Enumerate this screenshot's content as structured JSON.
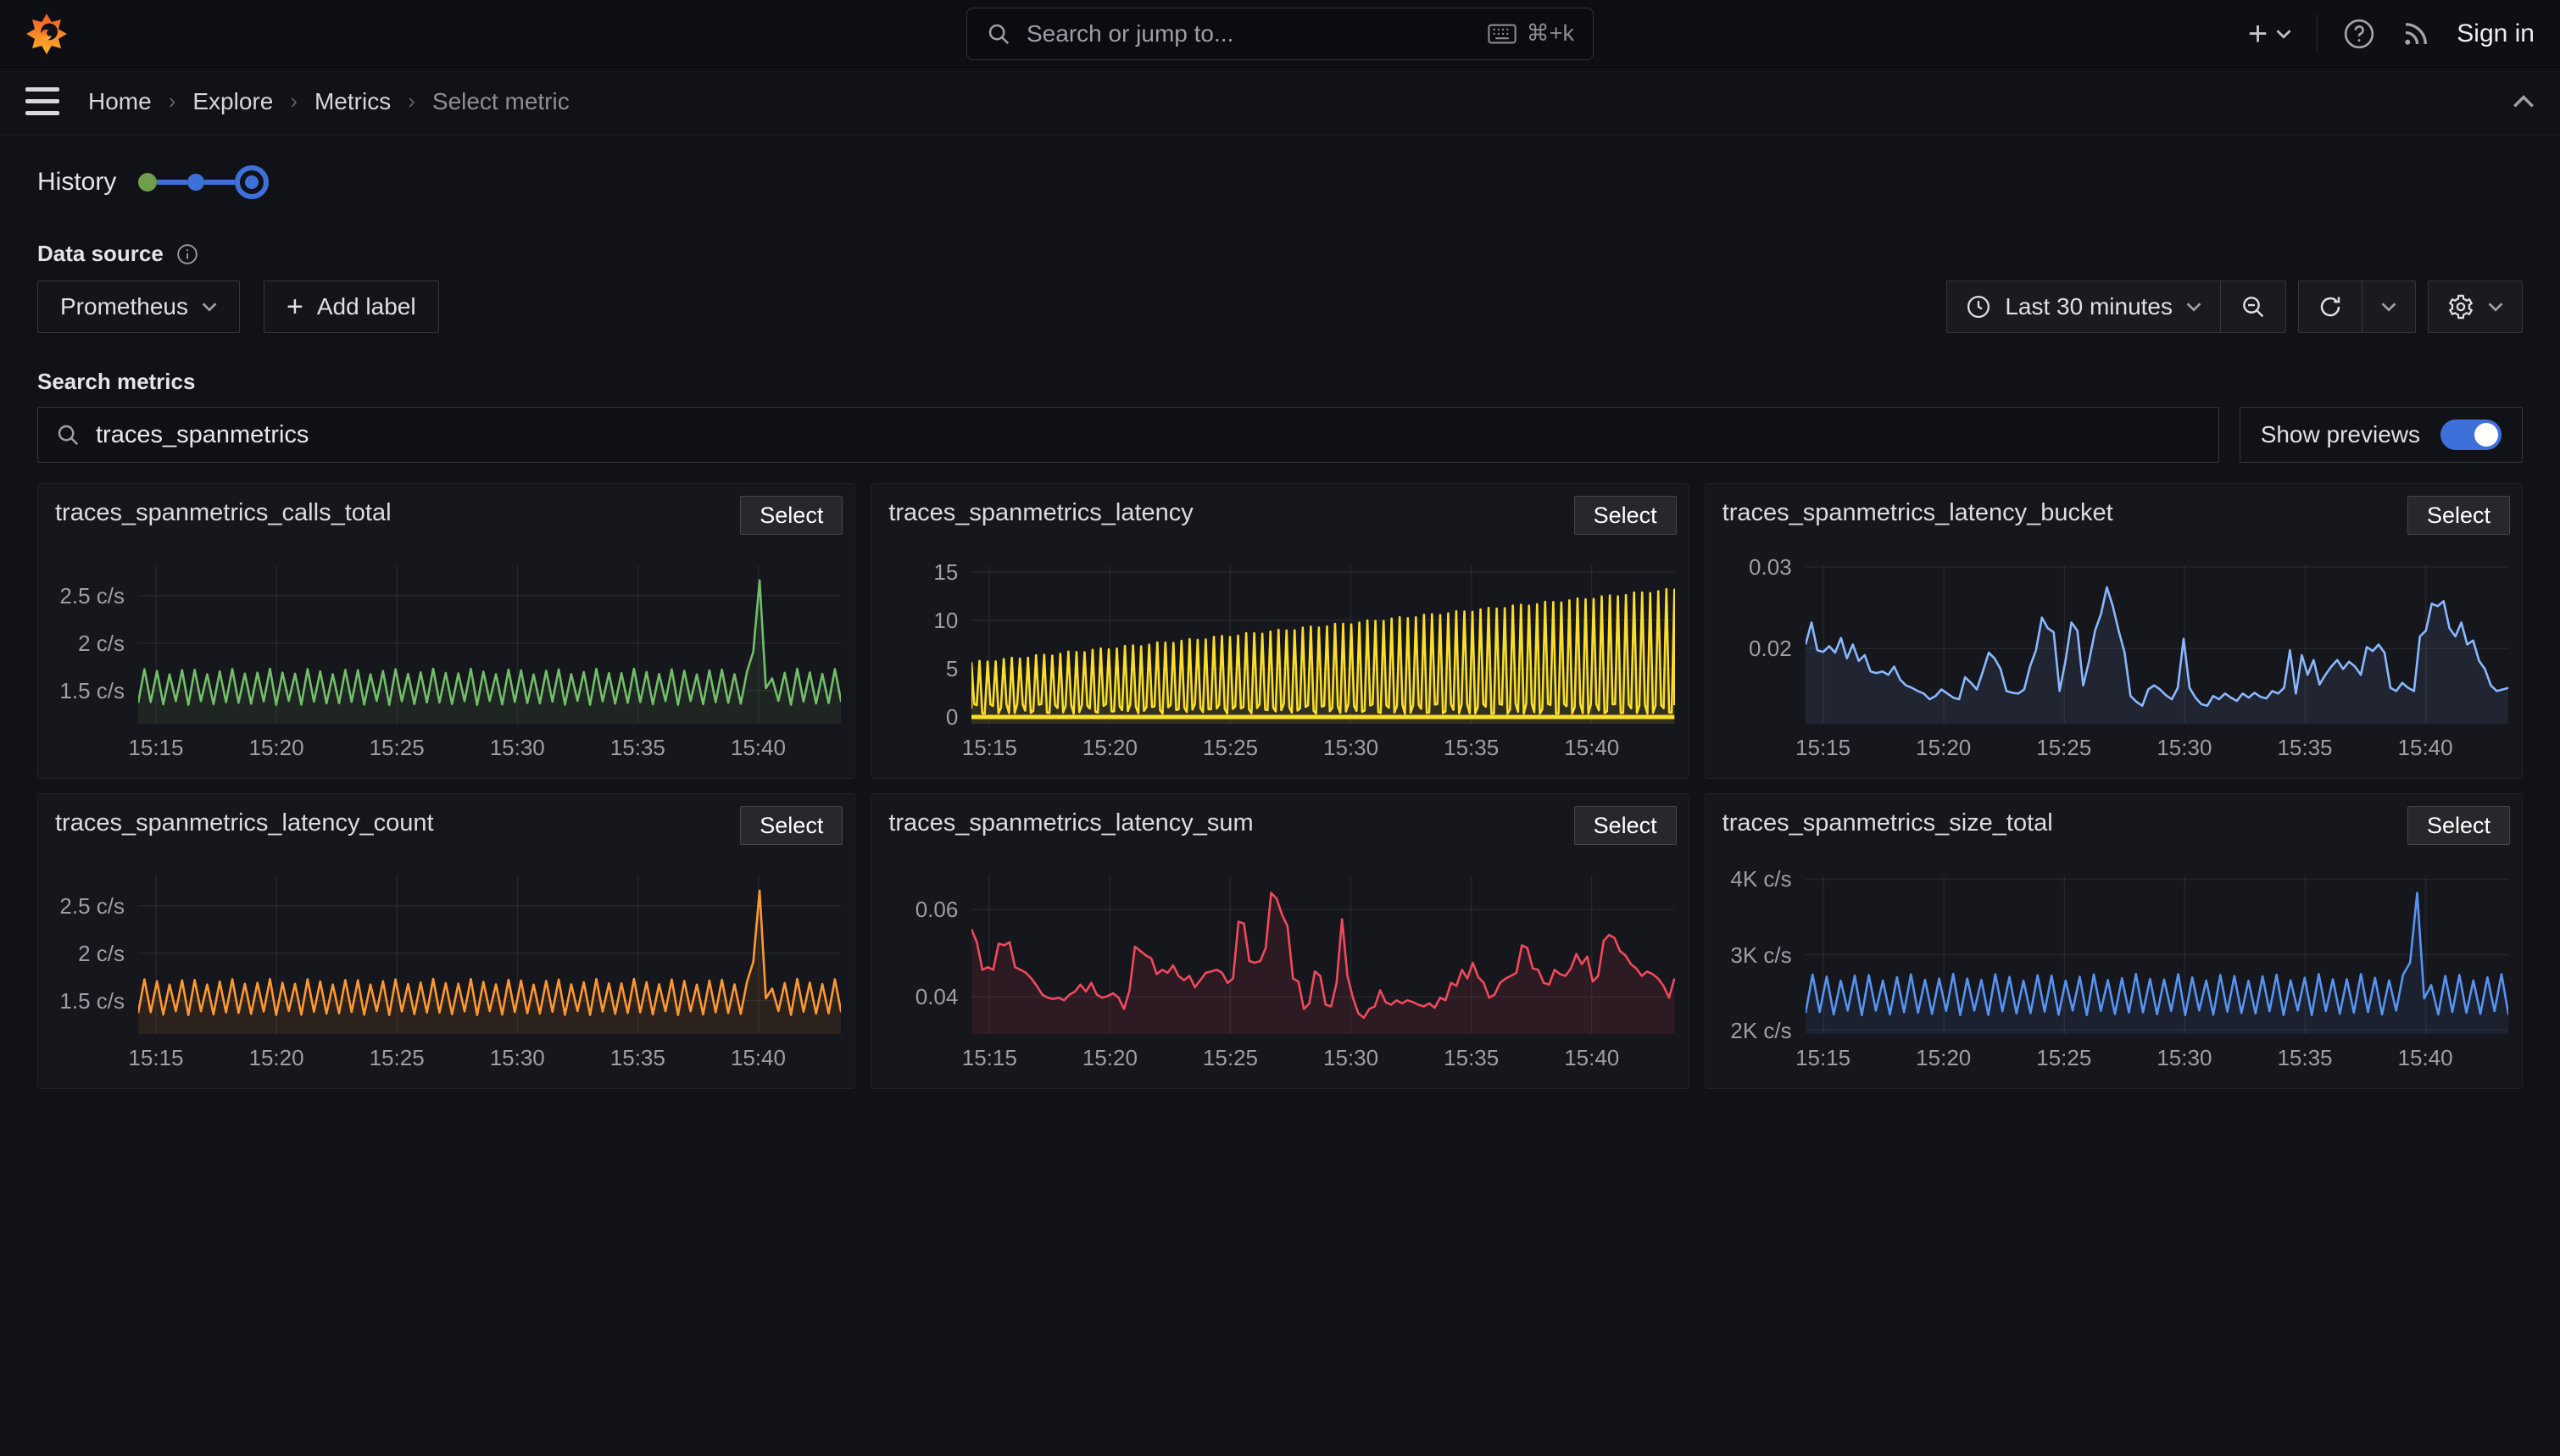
{
  "topbar": {
    "search_placeholder": "Search or jump to...",
    "shortcut": "⌘+k",
    "sign_in_label": "Sign in"
  },
  "breadcrumb": [
    "Home",
    "Explore",
    "Metrics",
    "Select metric"
  ],
  "history": {
    "label": "History"
  },
  "filters": {
    "datasource_label": "Data source",
    "datasource_value": "Prometheus",
    "add_label_button": "Add label",
    "time_range_label": "Last 30 minutes"
  },
  "search": {
    "label": "Search metrics",
    "value": "traces_spanmetrics",
    "show_previews_label": "Show previews"
  },
  "panel_button_label": "Select",
  "colors": {
    "accent_blue": "#3D71D9",
    "green": "#73BF69",
    "yellow": "#FADE2A",
    "light_blue": "#8AB8FF",
    "orange": "#FF9830",
    "red": "#F2495C",
    "blue": "#5794F2"
  },
  "chart_data": [
    {
      "type": "line",
      "title": "traces_spanmetrics_calls_total",
      "unit": "c/s",
      "color": "#73BF69",
      "fill_opacity": 0.09,
      "x_ticks": [
        "15:15",
        "15:20",
        "15:25",
        "15:30",
        "15:35",
        "15:40"
      ],
      "y_ticks": [
        {
          "v": 1.5,
          "label": "1.5 c/s"
        },
        {
          "v": 2,
          "label": "2 c/s"
        },
        {
          "v": 2.5,
          "label": "2.5 c/s"
        }
      ],
      "ylim": [
        1.15,
        2.82
      ],
      "series": {
        "kind": "zigzag",
        "cycles": 56,
        "low": 1.37,
        "high": 1.7,
        "jitter": 0.03,
        "spike_x": 0.873,
        "spike_value": 2.66
      }
    },
    {
      "type": "line",
      "title": "traces_spanmetrics_latency",
      "unit": "",
      "color": "#FADE2A",
      "fill_opacity": 0.12,
      "x_ticks": [
        "15:15",
        "15:20",
        "15:25",
        "15:30",
        "15:35",
        "15:40"
      ],
      "y_ticks": [
        {
          "v": 0,
          "label": "0"
        },
        {
          "v": 5,
          "label": "5"
        },
        {
          "v": 10,
          "label": "10"
        },
        {
          "v": 15,
          "label": "15"
        }
      ],
      "ylim": [
        -0.7,
        15.7
      ],
      "series": {
        "kind": "spikes",
        "count": 88,
        "top_start": 5.6,
        "top_end": 13.2,
        "low_min": 0.35,
        "low_max": 1.35,
        "baseline": 0
      }
    },
    {
      "type": "line",
      "title": "traces_spanmetrics_latency_bucket",
      "unit": "",
      "color": "#8AB8FF",
      "fill_opacity": 0.09,
      "x_ticks": [
        "15:15",
        "15:20",
        "15:25",
        "15:30",
        "15:35",
        "15:40"
      ],
      "y_ticks": [
        {
          "v": 0.02,
          "label": "0.02"
        },
        {
          "v": 0.03,
          "label": "0.03"
        }
      ],
      "ylim": [
        0.0108,
        0.0302
      ],
      "series": {
        "kind": "points",
        "values": [
          0.0205,
          0.0232,
          0.0198,
          0.0196,
          0.0203,
          0.0195,
          0.0213,
          0.0188,
          0.0205,
          0.0185,
          0.0192,
          0.0172,
          0.017,
          0.0172,
          0.0168,
          0.0178,
          0.0162,
          0.0155,
          0.0152,
          0.0148,
          0.0145,
          0.0138,
          0.0142,
          0.015,
          0.0145,
          0.014,
          0.0138,
          0.0165,
          0.0158,
          0.015,
          0.0172,
          0.0195,
          0.0188,
          0.0175,
          0.0148,
          0.0146,
          0.0145,
          0.015,
          0.0178,
          0.0198,
          0.0238,
          0.0225,
          0.022,
          0.0148,
          0.0185,
          0.0232,
          0.0222,
          0.0155,
          0.0185,
          0.0222,
          0.0242,
          0.0275,
          0.0252,
          0.0222,
          0.0195,
          0.0142,
          0.0135,
          0.013,
          0.015,
          0.0155,
          0.015,
          0.0143,
          0.0138,
          0.0152,
          0.0212,
          0.0152,
          0.014,
          0.0132,
          0.013,
          0.0142,
          0.0138,
          0.0145,
          0.014,
          0.0136,
          0.0145,
          0.014,
          0.0146,
          0.0141,
          0.0139,
          0.0148,
          0.0145,
          0.0152,
          0.0198,
          0.0145,
          0.0192,
          0.0168,
          0.0186,
          0.0156,
          0.0168,
          0.0178,
          0.0186,
          0.0175,
          0.0184,
          0.0178,
          0.0168,
          0.0202,
          0.0197,
          0.0205,
          0.0195,
          0.0152,
          0.0148,
          0.0158,
          0.0152,
          0.0148,
          0.0215,
          0.0222,
          0.0255,
          0.0252,
          0.0258,
          0.0225,
          0.0215,
          0.0232,
          0.0205,
          0.021,
          0.0185,
          0.0175,
          0.0155,
          0.0148,
          0.015,
          0.0152
        ]
      }
    },
    {
      "type": "line",
      "title": "traces_spanmetrics_latency_count",
      "unit": "c/s",
      "color": "#FF9830",
      "fill_opacity": 0.09,
      "x_ticks": [
        "15:15",
        "15:20",
        "15:25",
        "15:30",
        "15:35",
        "15:40"
      ],
      "y_ticks": [
        {
          "v": 1.5,
          "label": "1.5 c/s"
        },
        {
          "v": 2,
          "label": "2 c/s"
        },
        {
          "v": 2.5,
          "label": "2.5 c/s"
        }
      ],
      "ylim": [
        1.15,
        2.82
      ],
      "series": {
        "kind": "zigzag",
        "cycles": 56,
        "low": 1.37,
        "high": 1.7,
        "jitter": 0.03,
        "spike_x": 0.873,
        "spike_value": 2.66
      }
    },
    {
      "type": "line",
      "title": "traces_spanmetrics_latency_sum",
      "unit": "",
      "color": "#F2495C",
      "fill_opacity": 0.1,
      "x_ticks": [
        "15:15",
        "15:20",
        "15:25",
        "15:30",
        "15:35",
        "15:40"
      ],
      "y_ticks": [
        {
          "v": 0.04,
          "label": "0.04"
        },
        {
          "v": 0.06,
          "label": "0.06"
        }
      ],
      "ylim": [
        0.0315,
        0.0678
      ],
      "series": {
        "kind": "points",
        "values": [
          0.0555,
          0.0525,
          0.0462,
          0.0468,
          0.0462,
          0.0522,
          0.0518,
          0.0525,
          0.0468,
          0.0462,
          0.0455,
          0.0442,
          0.0425,
          0.0405,
          0.0398,
          0.0395,
          0.0398,
          0.0392,
          0.0405,
          0.0412,
          0.0428,
          0.0412,
          0.0432,
          0.0405,
          0.0398,
          0.0402,
          0.0408,
          0.0398,
          0.0372,
          0.0415,
          0.0515,
          0.0505,
          0.0495,
          0.0488,
          0.0452,
          0.0462,
          0.0455,
          0.0472,
          0.0448,
          0.0438,
          0.0448,
          0.0422,
          0.0438,
          0.0455,
          0.0458,
          0.0462,
          0.0455,
          0.0432,
          0.0442,
          0.0572,
          0.0568,
          0.0482,
          0.0478,
          0.0482,
          0.0512,
          0.0638,
          0.0625,
          0.0588,
          0.0562,
          0.0442,
          0.0435,
          0.0372,
          0.0385,
          0.0458,
          0.0448,
          0.0382,
          0.0378,
          0.0432,
          0.0578,
          0.0448,
          0.0398,
          0.0362,
          0.0352,
          0.0372,
          0.0378,
          0.0415,
          0.0388,
          0.0382,
          0.0392,
          0.0385,
          0.0392,
          0.0388,
          0.0382,
          0.0378,
          0.0385,
          0.0375,
          0.0398,
          0.0392,
          0.0432,
          0.0425,
          0.0462,
          0.0442,
          0.0478,
          0.0445,
          0.0432,
          0.0398,
          0.0405,
          0.0432,
          0.0442,
          0.0448,
          0.0455,
          0.0518,
          0.0512,
          0.0465,
          0.0462,
          0.0432,
          0.0428,
          0.0462,
          0.0452,
          0.0448,
          0.0465,
          0.0498,
          0.0475,
          0.0492,
          0.0435,
          0.0448,
          0.0528,
          0.0542,
          0.0535,
          0.0505,
          0.0495,
          0.0475,
          0.0465,
          0.0448,
          0.0458,
          0.0452,
          0.0442,
          0.0425,
          0.0398,
          0.0442
        ]
      }
    },
    {
      "type": "line",
      "title": "traces_spanmetrics_size_total",
      "unit": "c/s",
      "color": "#5794F2",
      "fill_opacity": 0.09,
      "x_ticks": [
        "15:15",
        "15:20",
        "15:25",
        "15:30",
        "15:35",
        "15:40"
      ],
      "y_ticks": [
        {
          "v": 2000,
          "label": "2K c/s"
        },
        {
          "v": 3000,
          "label": "3K c/s"
        },
        {
          "v": 4000,
          "label": "4K c/s"
        }
      ],
      "ylim": [
        1950,
        4050
      ],
      "series": {
        "kind": "zigzag",
        "cycles": 50,
        "low": 2230,
        "high": 2700,
        "jitter": 45,
        "spike_x": 0.873,
        "spike_value": 3820
      }
    }
  ]
}
